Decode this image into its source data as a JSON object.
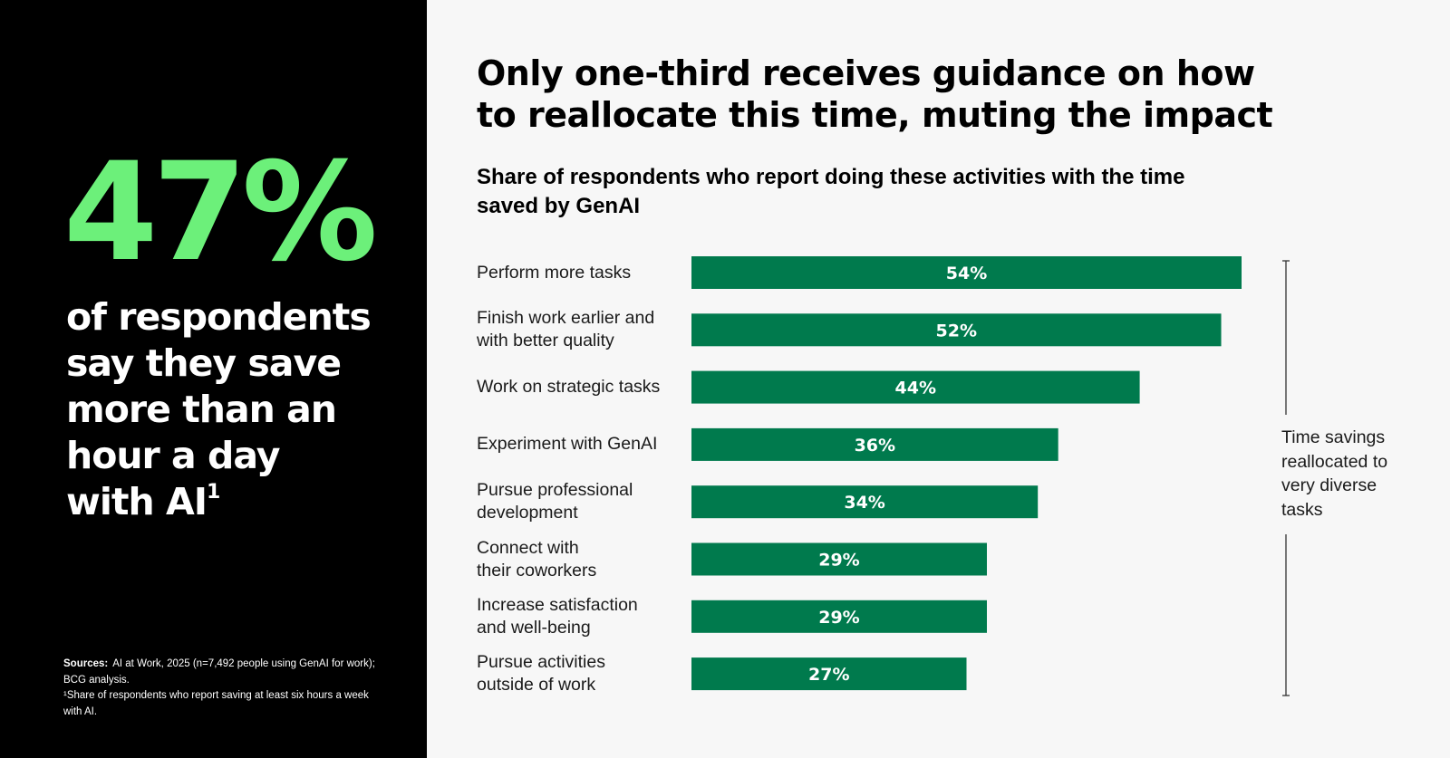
{
  "left": {
    "stat": "47%",
    "stat_lines": [
      "of respondents",
      "say they save",
      "more than an",
      "hour a day",
      "with AI"
    ],
    "stat_footnote_mark": "1",
    "sources_label": "Sources:",
    "sources_text": "AI at Work, 2025 (n=7,492 people using GenAI for work); BCG analysis.",
    "footnote": "¹Share of respondents who report saving at least six hours a week with AI."
  },
  "headline": "Only one-third receives guidance on how to reallocate this time, muting the impact",
  "subtitle": "Share of respondents who report doing these activities with the time saved by GenAI",
  "bracket_label": "Time savings reallocated to very diverse tasks",
  "colors": {
    "left_bg": "#000000",
    "accent_green": "#6cf07a",
    "bar": "#007a4d",
    "page_bg": "#f7f7f7"
  },
  "chart_data": {
    "type": "bar",
    "orientation": "horizontal",
    "title": "Share of respondents who report doing these activities with the time saved by GenAI",
    "unit": "%",
    "categories": [
      [
        "Perform more tasks"
      ],
      [
        "Finish work earlier and",
        "with better quality"
      ],
      [
        "Work on strategic tasks"
      ],
      [
        "Experiment with GenAI"
      ],
      [
        "Pursue professional",
        "development"
      ],
      [
        "Connect with",
        "their coworkers"
      ],
      [
        "Increase satisfaction",
        "and well-being"
      ],
      [
        "Pursue activities",
        "outside of work"
      ]
    ],
    "values": [
      54,
      52,
      44,
      36,
      34,
      29,
      29,
      27
    ],
    "labels": [
      "54%",
      "52%",
      "44%",
      "36%",
      "34%",
      "29%",
      "29%",
      "27%"
    ],
    "xlim": [
      0,
      54
    ],
    "grid": false,
    "legend": "none"
  }
}
